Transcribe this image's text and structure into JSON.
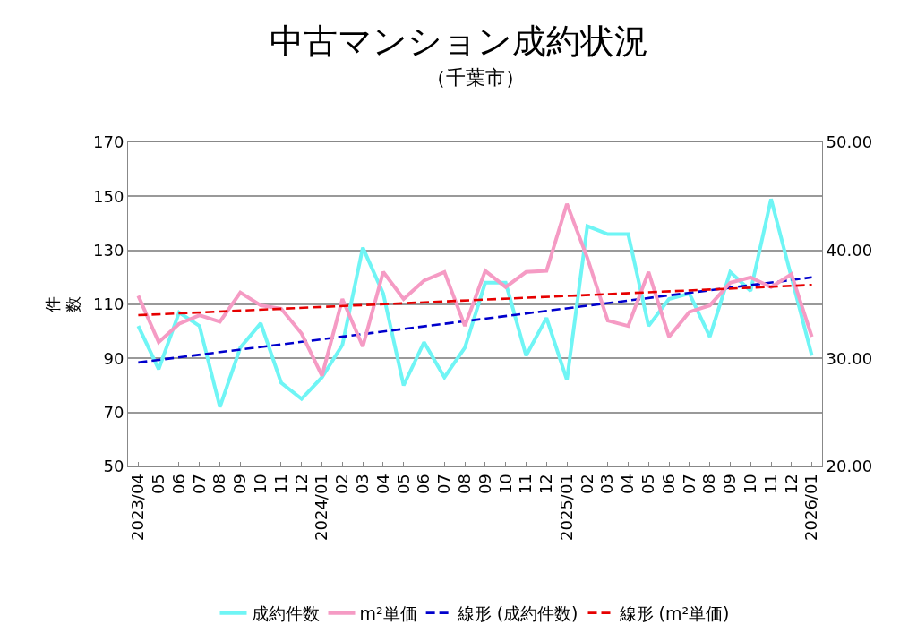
{
  "chart_data": {
    "type": "line",
    "title": "中古マンション成約状況",
    "subtitle": "（千葉市）",
    "ylabel": "件数",
    "categories": [
      "2023/04",
      "05",
      "06",
      "07",
      "08",
      "09",
      "10",
      "11",
      "12",
      "2024/01",
      "02",
      "03",
      "04",
      "05",
      "06",
      "07",
      "08",
      "09",
      "10",
      "11",
      "12",
      "2025/01",
      "02",
      "03",
      "04",
      "05",
      "06",
      "07",
      "08",
      "09",
      "10",
      "11",
      "12",
      "2026/01"
    ],
    "series": [
      {
        "name": "成約件数",
        "color": "#6ff5f5",
        "values": [
          102,
          86,
          107,
          102,
          72,
          94,
          103,
          81,
          75,
          83,
          95,
          131,
          114,
          80,
          96,
          83,
          94,
          118,
          118,
          91,
          105,
          82,
          139,
          136,
          136,
          102,
          112,
          114,
          98,
          122,
          115,
          149,
          120,
          91
        ]
      },
      {
        "name": "m²単価",
        "color": "#f59bc4",
        "axis": "y2",
        "values": [
          35.8,
          31.5,
          33.2,
          34.0,
          33.4,
          36.1,
          34.9,
          34.6,
          32.3,
          28.4,
          35.5,
          31.1,
          38.0,
          35.5,
          37.2,
          38.0,
          33.0,
          38.1,
          36.6,
          38.0,
          38.1,
          44.3,
          39.3,
          33.5,
          33.0,
          38.0,
          32.0,
          34.3,
          34.9,
          37.0,
          37.5,
          36.6,
          37.8,
          32.0
        ]
      },
      {
        "name": "線形 (成約件数)",
        "color": "#0000cc",
        "line_style": "dashed",
        "x": [
          "2023/04",
          "2026/01"
        ],
        "values": [
          88.5,
          120
        ]
      },
      {
        "name": "線形 (m²単価)",
        "color": "#e60000",
        "line_style": "dashed",
        "axis": "y2",
        "x": [
          "2023/04",
          "2026/01"
        ],
        "values": [
          34.0,
          36.8
        ]
      }
    ],
    "ylim": [
      50,
      170
    ],
    "yticks": [
      50,
      70,
      90,
      110,
      130,
      150,
      170
    ],
    "y2lim": [
      20,
      50
    ],
    "y2ticks": [
      {
        "value": 20,
        "label": "20.00"
      },
      {
        "value": 30,
        "label": "30.00"
      },
      {
        "value": 40,
        "label": "40.00"
      },
      {
        "value": 50,
        "label": "50.00"
      }
    ],
    "grid": "y",
    "legend": "bottom",
    "line_style": "solid",
    "marker": "none"
  }
}
